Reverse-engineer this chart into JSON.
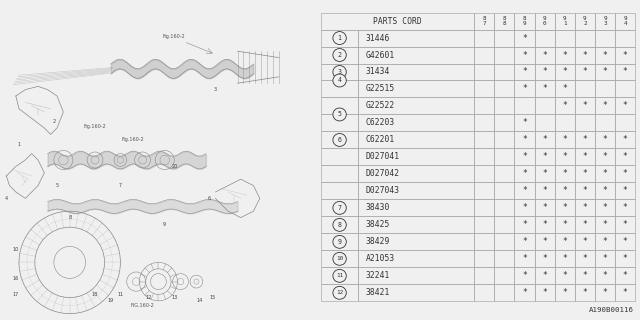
{
  "bg_color": "#f0f0f0",
  "col_header": "PARTS CORD",
  "year_cols": [
    "8\n7",
    "8\n8",
    "8\n9",
    "9\n0",
    "9\n1",
    "9\n2",
    "9\n3",
    "9\n4"
  ],
  "rows": [
    {
      "num": "1",
      "circle": "1",
      "part": "31446",
      "marks": [
        0,
        0,
        1,
        0,
        0,
        0,
        0,
        0
      ],
      "group_start": true,
      "group_size": 1
    },
    {
      "num": "2",
      "circle": "2",
      "part": "G42601",
      "marks": [
        0,
        0,
        1,
        1,
        1,
        1,
        1,
        1
      ],
      "group_start": true,
      "group_size": 1
    },
    {
      "num": "3",
      "circle": "3",
      "part": "31434",
      "marks": [
        0,
        0,
        1,
        1,
        1,
        1,
        1,
        1
      ],
      "group_start": true,
      "group_size": 1
    },
    {
      "num": "4",
      "circle": "4",
      "part": "G22515",
      "marks": [
        0,
        0,
        1,
        1,
        1,
        0,
        0,
        0
      ],
      "group_start": true,
      "group_size": 2
    },
    {
      "num": "4",
      "circle": null,
      "part": "G22522",
      "marks": [
        0,
        0,
        0,
        0,
        1,
        1,
        1,
        1
      ],
      "group_start": false,
      "group_size": 2
    },
    {
      "num": "5",
      "circle": "5",
      "part": "C62203",
      "marks": [
        0,
        0,
        1,
        0,
        0,
        0,
        0,
        0
      ],
      "group_start": true,
      "group_size": 2
    },
    {
      "num": "5",
      "circle": null,
      "part": "C62201",
      "marks": [
        0,
        0,
        1,
        1,
        1,
        1,
        1,
        1
      ],
      "group_start": false,
      "group_size": 2
    },
    {
      "num": "6",
      "circle": "6",
      "part": "D027041",
      "marks": [
        0,
        0,
        1,
        1,
        1,
        1,
        1,
        1
      ],
      "group_start": true,
      "group_size": 3
    },
    {
      "num": "6",
      "circle": null,
      "part": "D027042",
      "marks": [
        0,
        0,
        1,
        1,
        1,
        1,
        1,
        1
      ],
      "group_start": false,
      "group_size": 3
    },
    {
      "num": "6",
      "circle": null,
      "part": "D027043",
      "marks": [
        0,
        0,
        1,
        1,
        1,
        1,
        1,
        1
      ],
      "group_start": false,
      "group_size": 3
    },
    {
      "num": "7",
      "circle": "7",
      "part": "38430",
      "marks": [
        0,
        0,
        1,
        1,
        1,
        1,
        1,
        1
      ],
      "group_start": true,
      "group_size": 1
    },
    {
      "num": "8",
      "circle": "8",
      "part": "38425",
      "marks": [
        0,
        0,
        1,
        1,
        1,
        1,
        1,
        1
      ],
      "group_start": true,
      "group_size": 1
    },
    {
      "num": "9",
      "circle": "9",
      "part": "38429",
      "marks": [
        0,
        0,
        1,
        1,
        1,
        1,
        1,
        1
      ],
      "group_start": true,
      "group_size": 1
    },
    {
      "num": "10",
      "circle": "10",
      "part": "A21053",
      "marks": [
        0,
        0,
        1,
        1,
        1,
        1,
        1,
        1
      ],
      "group_start": true,
      "group_size": 1
    },
    {
      "num": "11",
      "circle": "11",
      "part": "32241",
      "marks": [
        0,
        0,
        1,
        1,
        1,
        1,
        1,
        1
      ],
      "group_start": true,
      "group_size": 1
    },
    {
      "num": "12",
      "circle": "12",
      "part": "38421",
      "marks": [
        0,
        0,
        1,
        1,
        1,
        1,
        1,
        1
      ],
      "group_start": true,
      "group_size": 1
    }
  ],
  "footer": "A190B00116",
  "line_color": "#aaaaaa",
  "text_color": "#333333",
  "font_size": 5.8,
  "draw_color": "#888888"
}
